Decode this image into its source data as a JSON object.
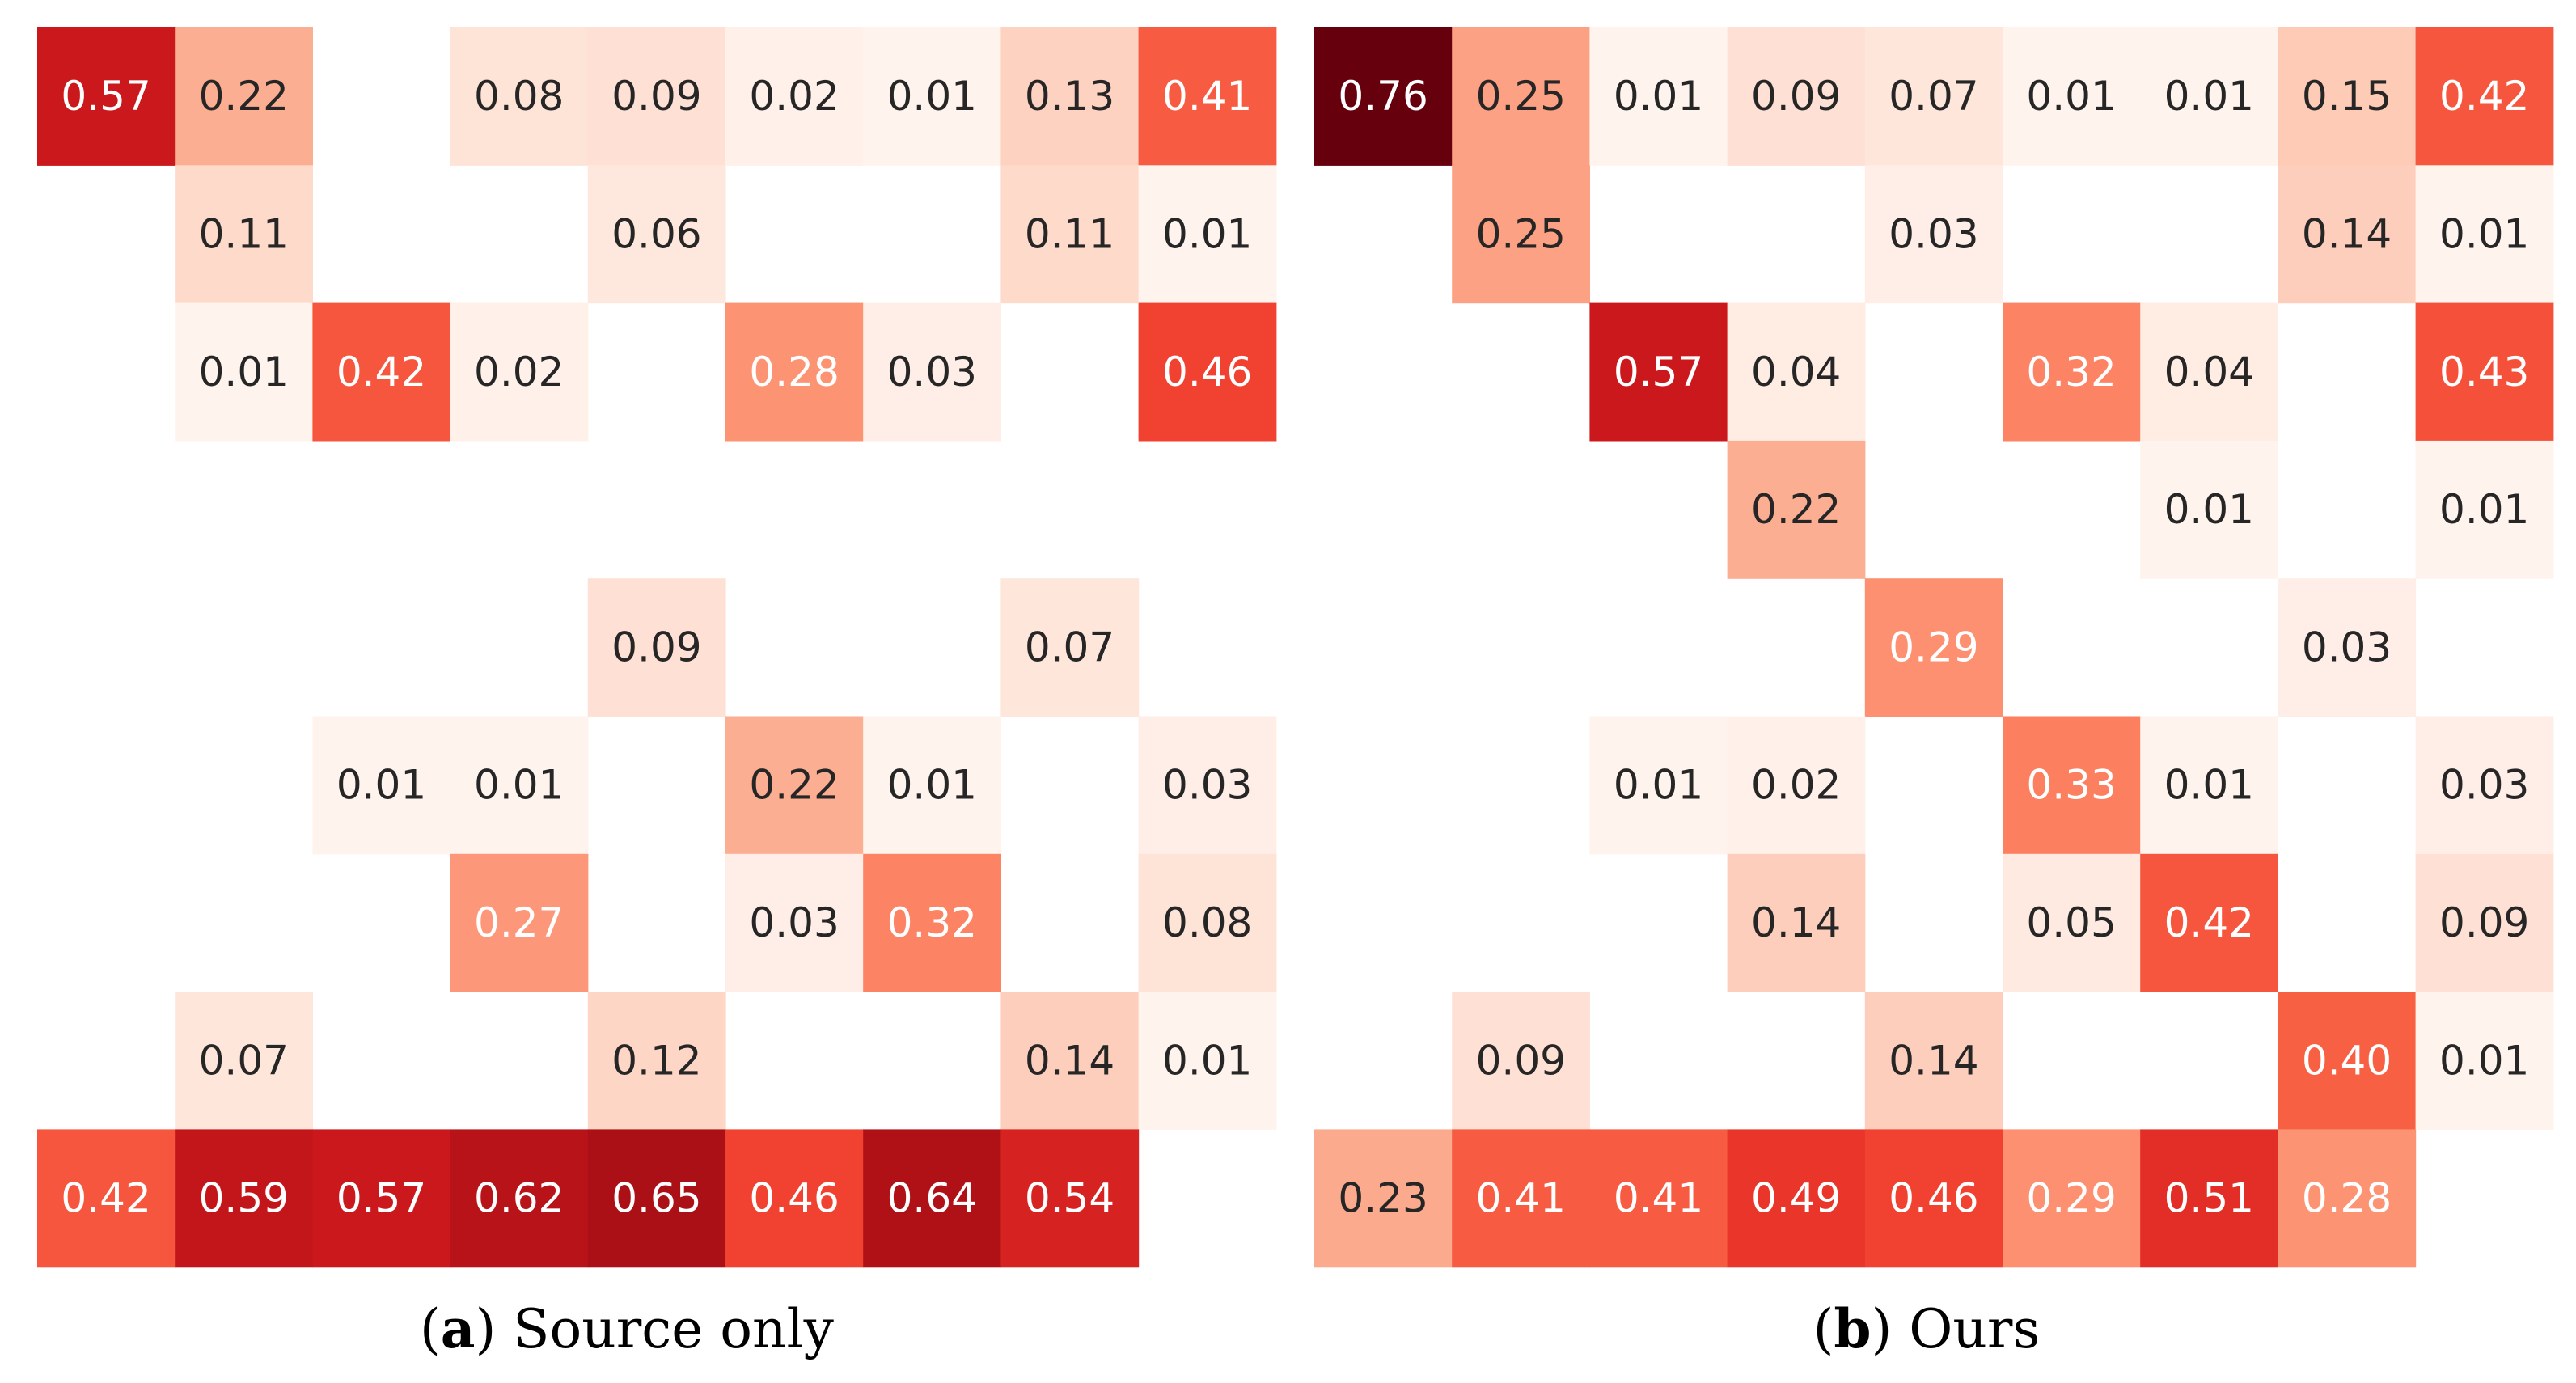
{
  "chart_data": [
    {
      "type": "heatmap",
      "caption_letter": "a",
      "caption_text": "Source only",
      "rows": 9,
      "cols": 9,
      "value_range": [
        0,
        0.76
      ],
      "values": [
        [
          0.57,
          0.22,
          null,
          0.08,
          0.09,
          0.02,
          0.01,
          0.13,
          0.41
        ],
        [
          null,
          0.11,
          null,
          null,
          0.06,
          null,
          null,
          0.11,
          0.01
        ],
        [
          null,
          0.01,
          0.42,
          0.02,
          null,
          0.28,
          0.03,
          null,
          0.46
        ],
        [
          null,
          null,
          null,
          null,
          null,
          null,
          null,
          null,
          null
        ],
        [
          null,
          null,
          null,
          null,
          0.09,
          null,
          null,
          0.07,
          null
        ],
        [
          null,
          null,
          0.01,
          0.01,
          null,
          0.22,
          0.01,
          null,
          0.03
        ],
        [
          null,
          null,
          null,
          0.27,
          null,
          0.03,
          0.32,
          null,
          0.08
        ],
        [
          null,
          0.07,
          null,
          null,
          0.12,
          null,
          null,
          0.14,
          0.01
        ],
        [
          0.42,
          0.59,
          0.57,
          0.62,
          0.65,
          0.46,
          0.64,
          0.54,
          null
        ]
      ],
      "labels": [
        [
          "0.57",
          "0.22",
          "",
          "0.08",
          "0.09",
          "0.02",
          "0.01",
          "0.13",
          "0.41"
        ],
        [
          "",
          "0.11",
          "",
          "",
          "0.06",
          "",
          "",
          "0.11",
          "0.01"
        ],
        [
          "",
          "0.01",
          "0.42",
          "0.02",
          "",
          "0.28",
          "0.03",
          "",
          "0.46"
        ],
        [
          "",
          "",
          "",
          "",
          "",
          "",
          "",
          "",
          ""
        ],
        [
          "",
          "",
          "",
          "",
          "0.09",
          "",
          "",
          "0.07",
          ""
        ],
        [
          "",
          "",
          "0.01",
          "0.01",
          "",
          "0.22",
          "0.01",
          "",
          "0.03"
        ],
        [
          "",
          "",
          "",
          "0.27",
          "",
          "0.03",
          "0.32",
          "",
          "0.08"
        ],
        [
          "",
          "0.07",
          "",
          "",
          "0.12",
          "",
          "",
          "0.14",
          "0.01"
        ],
        [
          "0.42",
          "0.59",
          "0.57",
          "0.62",
          "0.65",
          "0.46",
          "0.64",
          "0.54",
          ""
        ]
      ]
    },
    {
      "type": "heatmap",
      "caption_letter": "b",
      "caption_text": "Ours",
      "rows": 9,
      "cols": 9,
      "value_range": [
        0,
        0.76
      ],
      "values": [
        [
          0.76,
          0.25,
          0.01,
          0.09,
          0.07,
          0.01,
          0.01,
          0.15,
          0.42
        ],
        [
          null,
          0.25,
          null,
          null,
          0.03,
          null,
          null,
          0.14,
          0.01
        ],
        [
          null,
          null,
          0.57,
          0.04,
          null,
          0.32,
          0.04,
          null,
          0.43
        ],
        [
          null,
          null,
          null,
          0.22,
          null,
          null,
          0.01,
          null,
          0.01
        ],
        [
          null,
          null,
          null,
          null,
          0.29,
          null,
          null,
          0.03,
          null
        ],
        [
          null,
          null,
          0.01,
          0.02,
          null,
          0.33,
          0.01,
          null,
          0.03
        ],
        [
          null,
          null,
          null,
          0.14,
          null,
          0.05,
          0.42,
          null,
          0.09
        ],
        [
          null,
          0.09,
          null,
          null,
          0.14,
          null,
          null,
          0.4,
          0.01
        ],
        [
          0.23,
          0.41,
          0.41,
          0.49,
          0.46,
          0.29,
          0.51,
          0.28,
          null
        ]
      ],
      "labels": [
        [
          "0.76",
          "0.25",
          "0.01",
          "0.09",
          "0.07",
          "0.01",
          "0.01",
          "0.15",
          "0.42"
        ],
        [
          "",
          "0.25",
          "",
          "",
          "0.03",
          "",
          "",
          "0.14",
          "0.01"
        ],
        [
          "",
          "",
          "0.57",
          "0.04",
          "",
          "0.32",
          "0.04",
          "",
          "0.43"
        ],
        [
          "",
          "",
          "",
          "0.22",
          "",
          "",
          "0.01",
          "",
          "0.01"
        ],
        [
          "",
          "",
          "",
          "",
          "0.29",
          "",
          "",
          "0.03",
          ""
        ],
        [
          "",
          "",
          "0.01",
          "0.02",
          "",
          "0.33",
          "0.01",
          "",
          "0.03"
        ],
        [
          "",
          "",
          "",
          "0.14",
          "",
          "0.05",
          "0.42",
          "",
          "0.09"
        ],
        [
          "",
          "0.09",
          "",
          "",
          "0.14",
          "",
          "",
          "0.40",
          "0.01"
        ],
        [
          "0.23",
          "0.41",
          "0.41",
          "0.49",
          "0.46",
          "0.29",
          "0.51",
          "0.28",
          ""
        ]
      ]
    }
  ]
}
